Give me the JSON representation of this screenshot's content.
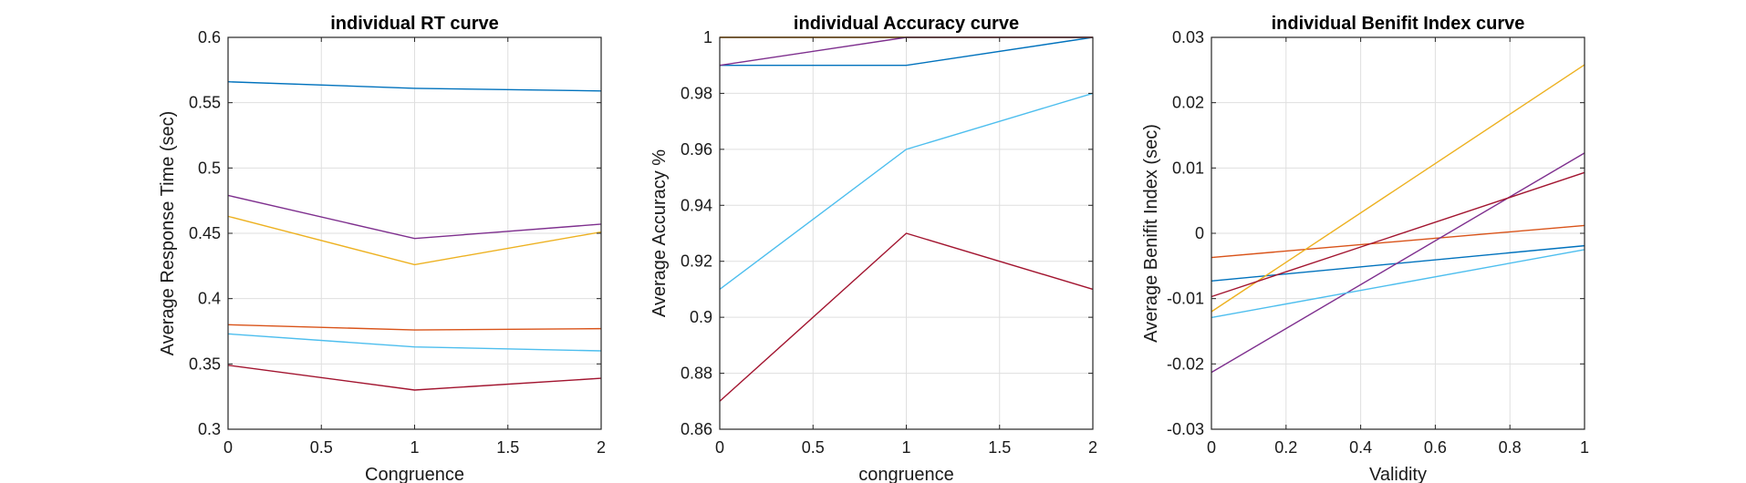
{
  "chart_data": [
    {
      "type": "line",
      "title": "individual RT curve",
      "xlabel": "Congruence",
      "ylabel": "Average Response Time (sec)",
      "xlim": [
        0,
        2
      ],
      "ylim": [
        0.3,
        0.6
      ],
      "xticks": [
        "0",
        "0.5",
        "1",
        "1.5",
        "2"
      ],
      "yticks": [
        "0.3",
        "0.35",
        "0.4",
        "0.45",
        "0.5",
        "0.55",
        "0.6"
      ],
      "grid": true,
      "x": [
        0,
        1,
        2
      ],
      "series": [
        {
          "color": "#0072BD",
          "values": [
            0.566,
            0.561,
            0.559
          ]
        },
        {
          "color": "#D95319",
          "values": [
            0.38,
            0.376,
            0.377
          ]
        },
        {
          "color": "#EDB120",
          "values": [
            0.463,
            0.426,
            0.451
          ]
        },
        {
          "color": "#7E2F8E",
          "values": [
            0.479,
            0.446,
            0.457
          ]
        },
        {
          "color": "#4DBEEE",
          "values": [
            0.373,
            0.363,
            0.36
          ]
        },
        {
          "color": "#A2142F",
          "values": [
            0.349,
            0.33,
            0.339
          ]
        }
      ]
    },
    {
      "type": "line",
      "title": "individual Accuracy curve",
      "xlabel": "congruence",
      "ylabel": "Average Accuracy %",
      "xlim": [
        0,
        2
      ],
      "ylim": [
        0.86,
        1.0
      ],
      "xticks": [
        "0",
        "0.5",
        "1",
        "1.5",
        "2"
      ],
      "yticks": [
        "0.86",
        "0.88",
        "0.9",
        "0.92",
        "0.94",
        "0.96",
        "0.98",
        "1"
      ],
      "grid": true,
      "x": [
        0,
        1,
        2
      ],
      "series": [
        {
          "color": "#0072BD",
          "values": [
            0.99,
            0.99,
            1.0
          ]
        },
        {
          "color": "#D95319",
          "values": [
            1.0,
            1.0,
            1.0
          ]
        },
        {
          "color": "#EDB120",
          "values": [
            1.0,
            1.0,
            1.0
          ]
        },
        {
          "color": "#7E2F8E",
          "values": [
            0.99,
            1.0,
            1.0
          ]
        },
        {
          "color": "#4DBEEE",
          "values": [
            0.91,
            0.96,
            0.98
          ]
        },
        {
          "color": "#A2142F",
          "values": [
            0.87,
            0.93,
            0.91
          ]
        }
      ]
    },
    {
      "type": "line",
      "title": "individual Benifit Index curve",
      "xlabel": "Validity",
      "ylabel": "Average Benifit Index (sec)",
      "xlim": [
        0,
        1
      ],
      "ylim": [
        -0.03,
        0.03
      ],
      "xticks": [
        "0",
        "0.2",
        "0.4",
        "0.6",
        "0.8",
        "1"
      ],
      "yticks": [
        "-0.03",
        "-0.02",
        "-0.01",
        "0",
        "0.01",
        "0.02",
        "0.03"
      ],
      "grid": true,
      "x": [
        0,
        1
      ],
      "series": [
        {
          "color": "#0072BD",
          "values": [
            -0.0073,
            -0.0019
          ]
        },
        {
          "color": "#D95319",
          "values": [
            -0.0037,
            0.0012
          ]
        },
        {
          "color": "#EDB120",
          "values": [
            -0.012,
            0.0258
          ]
        },
        {
          "color": "#7E2F8E",
          "values": [
            -0.0213,
            0.0123
          ]
        },
        {
          "color": "#4DBEEE",
          "values": [
            -0.0129,
            -0.0025
          ]
        },
        {
          "color": "#A2142F",
          "values": [
            -0.0097,
            0.0093
          ]
        }
      ]
    }
  ]
}
